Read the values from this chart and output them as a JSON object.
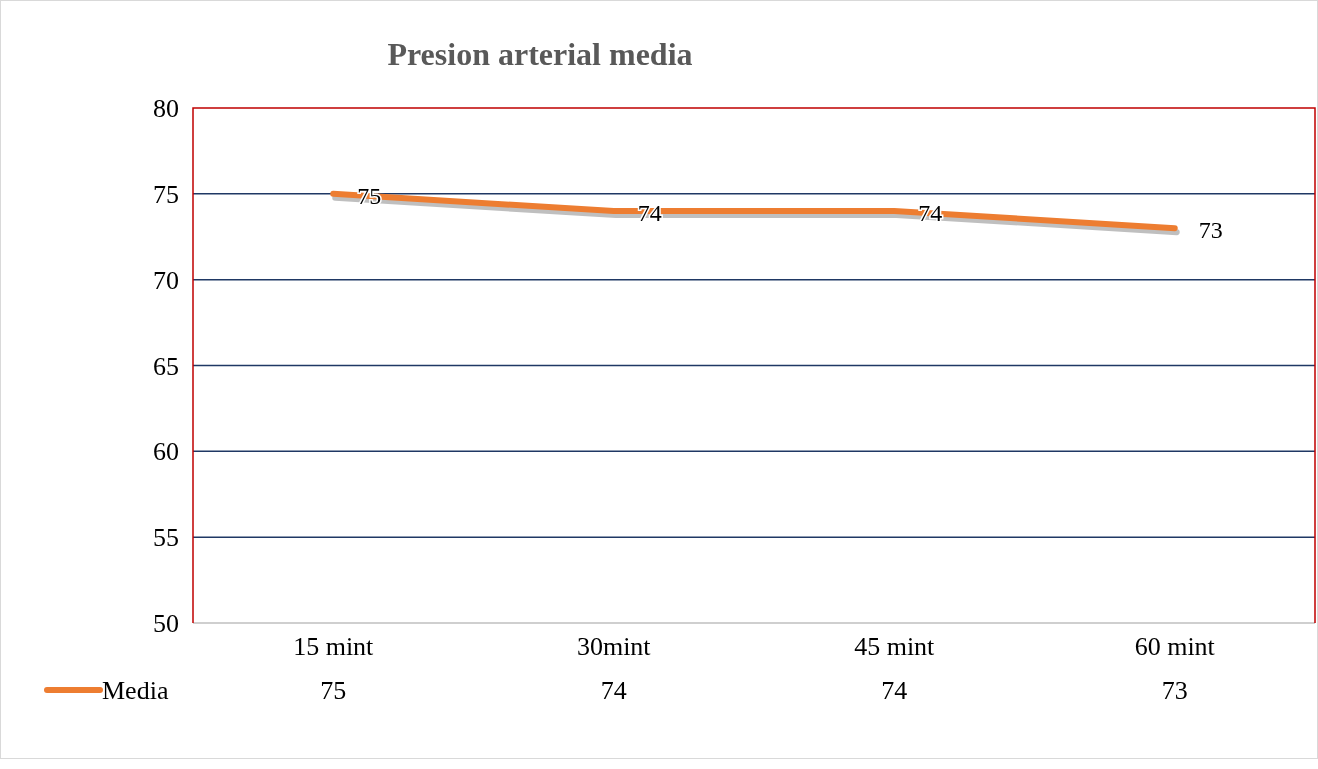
{
  "chart_data": {
    "type": "line",
    "title": "Presion arterial media",
    "categories": [
      "15 mint",
      "30mint",
      "45 mint",
      "60 mint"
    ],
    "series": [
      {
        "name": "Media",
        "color": "#ed7d31",
        "values": [
          75,
          74,
          74,
          73
        ]
      }
    ],
    "annotations": [
      {
        "text": "75",
        "x": "15 mint",
        "y": 75
      },
      {
        "text": "74",
        "x": "30mint",
        "y": 74
      },
      {
        "text": "74",
        "x": "45 mint",
        "y": 74
      },
      {
        "text": "73",
        "x": "60 mint",
        "y": 73
      }
    ],
    "ylim": [
      50,
      80
    ],
    "yticks": [
      50,
      55,
      60,
      65,
      70,
      75,
      80
    ],
    "grid": "y",
    "legend": "bottom",
    "data_labels": true,
    "marker": "none",
    "line_style": "solid"
  }
}
